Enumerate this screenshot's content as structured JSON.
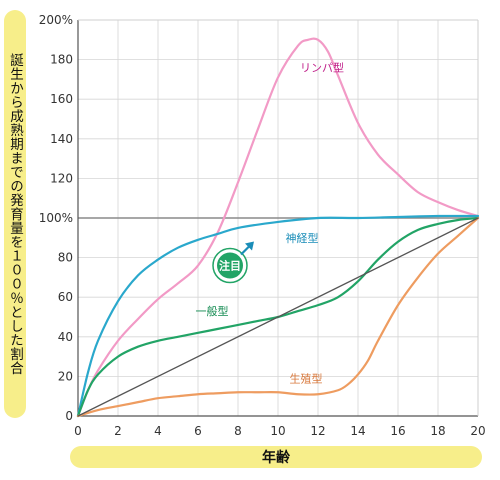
{
  "chart_data": {
    "type": "line",
    "xlabel": "年齢",
    "ylabel": "誕生から成熟期までの発育量を１００％とした割合",
    "xlim": [
      0,
      20
    ],
    "ylim": [
      0,
      200
    ],
    "x_ticks": [
      "0",
      "2",
      "4",
      "6",
      "8",
      "10",
      "12",
      "14",
      "16",
      "18",
      "20"
    ],
    "y_ticks": [
      "0",
      "20",
      "40",
      "60",
      "80",
      "100%",
      "120",
      "140",
      "160",
      "180",
      "200%"
    ],
    "grid": true,
    "series": [
      {
        "name": "リンパ型",
        "color": "#f29ac6",
        "x": [
          0,
          0.5,
          1,
          2,
          3,
          4,
          5,
          6,
          7,
          8,
          9,
          10,
          11,
          11.5,
          12,
          12.5,
          13,
          14,
          15,
          16,
          17,
          18,
          19,
          20
        ],
        "y": [
          0,
          13,
          23,
          38,
          49,
          59,
          67,
          76,
          93,
          118,
          145,
          171,
          187,
          190,
          190,
          184,
          172,
          148,
          132,
          122,
          113,
          108,
          104,
          101
        ]
      },
      {
        "name": "神経型",
        "color": "#2aa8cc",
        "x": [
          0,
          0.5,
          1,
          2,
          3,
          4,
          5,
          6,
          7,
          8,
          10,
          12,
          14,
          16,
          18,
          20
        ],
        "y": [
          0,
          22,
          38,
          58,
          71,
          79,
          85,
          89,
          92,
          95,
          98,
          100,
          100,
          100.5,
          101,
          101
        ]
      },
      {
        "name": "一般型",
        "color": "#22a466",
        "x": [
          0,
          0.5,
          1,
          2,
          3,
          4,
          5,
          6,
          7,
          8,
          9,
          10,
          11,
          12,
          13,
          14,
          15,
          16,
          17,
          18,
          19,
          20
        ],
        "y": [
          0,
          13,
          21,
          30,
          35,
          38,
          40,
          42,
          44,
          46,
          48,
          50,
          53,
          56,
          60,
          68,
          79,
          88,
          94,
          97,
          99,
          100
        ]
      },
      {
        "name": "生殖型",
        "color": "#ee9c60",
        "x": [
          0,
          1,
          2,
          3,
          4,
          5,
          6,
          7,
          8,
          9,
          10,
          11,
          12,
          13,
          13.5,
          14,
          14.5,
          15,
          16,
          17,
          18,
          19,
          20
        ],
        "y": [
          0,
          3,
          5,
          7,
          9,
          10,
          11,
          11.5,
          12,
          12,
          12,
          11,
          11,
          13,
          16,
          21,
          28,
          38,
          56,
          70,
          82,
          91,
          100
        ]
      },
      {
        "name": "",
        "color": "#555555",
        "x": [
          0,
          20
        ],
        "y": [
          0,
          100
        ]
      }
    ],
    "annotations": [
      {
        "text": "リンパ型",
        "x": 12.2,
        "y": 174,
        "color": "#c0208a"
      },
      {
        "text": "神経型",
        "x": 11.2,
        "y": 88,
        "color": "#1a8db8"
      },
      {
        "text": "一般型",
        "x": 6.7,
        "y": 51,
        "color": "#128a50"
      },
      {
        "text": "生殖型",
        "x": 11.4,
        "y": 17,
        "color": "#d8793d"
      }
    ],
    "badge": {
      "text": "注目",
      "color": "#22a466"
    }
  }
}
